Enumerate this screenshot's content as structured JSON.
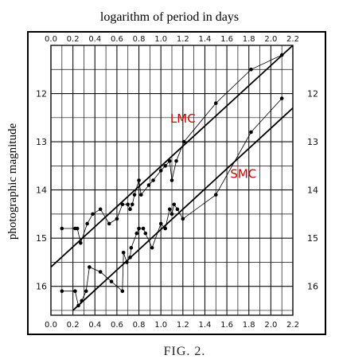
{
  "chart_data": {
    "type": "scatter",
    "title": "logarithm of period in days",
    "xlabel": "logarithm of period in days",
    "ylabel": "photographic magnitude",
    "xlim": [
      0.0,
      2.2
    ],
    "ylim": [
      11.0,
      16.6
    ],
    "y_inverted": true,
    "x_ticks": [
      "0.0",
      "0.2",
      "0.4",
      "0.6",
      "0.8",
      "1.0",
      "1.2",
      "1.4",
      "1.6",
      "1.8",
      "2.0",
      "2.2"
    ],
    "y_ticks": [
      "12",
      "13",
      "14",
      "15",
      "16"
    ],
    "grid": true,
    "caption": "FIG. 2.",
    "annotations": [
      {
        "text": "LMC",
        "x": 1.2,
        "y": 12.6,
        "color": "#cc0000"
      },
      {
        "text": "SMC",
        "x": 1.75,
        "y": 13.75,
        "color": "#cc0000"
      }
    ],
    "series": [
      {
        "name": "LMC",
        "points": [
          [
            0.1,
            14.8
          ],
          [
            0.22,
            14.8
          ],
          [
            0.24,
            14.8
          ],
          [
            0.27,
            15.1
          ],
          [
            0.33,
            14.7
          ],
          [
            0.38,
            14.5
          ],
          [
            0.45,
            14.4
          ],
          [
            0.53,
            14.7
          ],
          [
            0.6,
            14.6
          ],
          [
            0.65,
            14.3
          ],
          [
            0.7,
            14.3
          ],
          [
            0.72,
            14.4
          ],
          [
            0.74,
            14.3
          ],
          [
            0.76,
            14.1
          ],
          [
            0.8,
            13.8
          ],
          [
            0.82,
            14.1
          ],
          [
            0.89,
            13.9
          ],
          [
            0.93,
            13.8
          ],
          [
            1.0,
            13.6
          ],
          [
            1.04,
            13.5
          ],
          [
            1.08,
            13.4
          ],
          [
            1.1,
            13.8
          ],
          [
            1.14,
            13.4
          ],
          [
            1.21,
            13.0
          ],
          [
            1.5,
            12.2
          ],
          [
            1.82,
            11.5
          ],
          [
            2.1,
            11.2
          ]
        ],
        "fit_line": [
          [
            0.0,
            15.6
          ],
          [
            2.2,
            11.0
          ]
        ]
      },
      {
        "name": "SMC",
        "points": [
          [
            0.1,
            16.1
          ],
          [
            0.22,
            16.1
          ],
          [
            0.25,
            16.4
          ],
          [
            0.28,
            16.3
          ],
          [
            0.32,
            16.1
          ],
          [
            0.35,
            15.6
          ],
          [
            0.45,
            15.7
          ],
          [
            0.55,
            15.9
          ],
          [
            0.65,
            16.1
          ],
          [
            0.66,
            15.3
          ],
          [
            0.69,
            15.5
          ],
          [
            0.72,
            15.4
          ],
          [
            0.73,
            15.2
          ],
          [
            0.78,
            14.9
          ],
          [
            0.8,
            14.8
          ],
          [
            0.84,
            14.8
          ],
          [
            0.86,
            14.9
          ],
          [
            0.92,
            15.2
          ],
          [
            1.0,
            14.7
          ],
          [
            1.04,
            14.8
          ],
          [
            1.08,
            14.4
          ],
          [
            1.1,
            14.5
          ],
          [
            1.12,
            14.3
          ],
          [
            1.15,
            14.4
          ],
          [
            1.2,
            14.6
          ],
          [
            1.5,
            14.1
          ],
          [
            1.82,
            12.8
          ],
          [
            2.1,
            12.1
          ]
        ],
        "fit_line": [
          [
            0.2,
            16.5
          ],
          [
            2.2,
            12.3
          ]
        ]
      }
    ]
  }
}
